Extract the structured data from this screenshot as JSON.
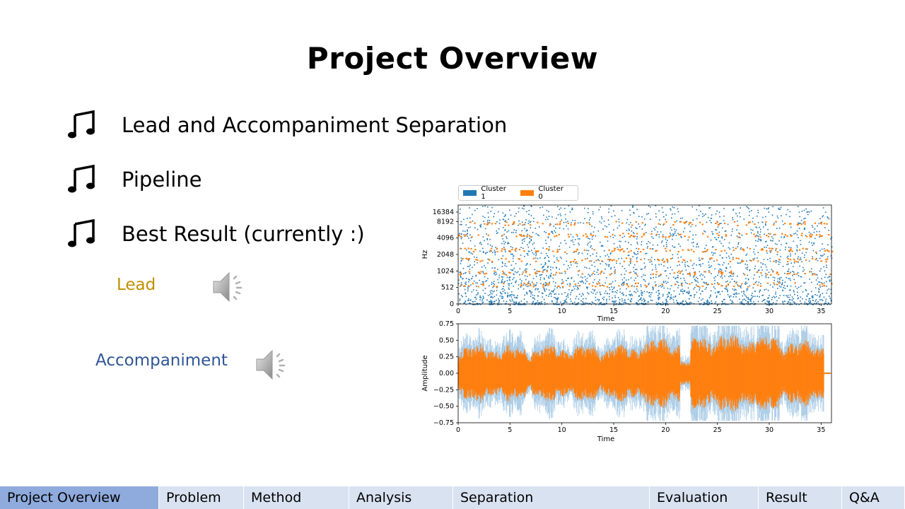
{
  "slide": {
    "title": "Project Overview",
    "bullets": [
      {
        "text": "Lead and Accompaniment Separation",
        "icon": "music-note-icon"
      },
      {
        "text": "Pipeline",
        "icon": "music-note-icon"
      },
      {
        "text": "Best Result (currently :)",
        "icon": "music-note-icon"
      }
    ],
    "audio": [
      {
        "label": "Lead",
        "color": "#c09000",
        "icon": "speaker-icon"
      },
      {
        "label": "Accompaniment",
        "color": "#2f5597",
        "icon": "speaker-icon"
      }
    ]
  },
  "colors": {
    "cluster1": "#1f77b4",
    "cluster0": "#ff7f0e",
    "nav_active": "#8faadc",
    "nav_bg": "#d9e2f1"
  },
  "chart_data": [
    {
      "type": "scatter",
      "title": "",
      "xlabel": "Time",
      "ylabel": "Hz",
      "x_ticks": [
        "0",
        "5",
        "10",
        "15",
        "20",
        "25",
        "30",
        "35"
      ],
      "y_ticks": [
        "0",
        "512",
        "1024",
        "2048",
        "4096",
        "8192",
        "16384"
      ],
      "xlim": [
        0,
        36
      ],
      "yscale": "log2",
      "legend": {
        "placement": "top-left",
        "entries": [
          "Cluster 1",
          "Cluster 0"
        ]
      },
      "series": [
        {
          "name": "Cluster 1",
          "color": "#1f77b4"
        },
        {
          "name": "Cluster 0",
          "color": "#ff7f0e"
        }
      ]
    },
    {
      "type": "line",
      "title": "",
      "xlabel": "Time",
      "ylabel": "Amplitude",
      "x_ticks": [
        "0",
        "5",
        "10",
        "15",
        "20",
        "25",
        "30",
        "35"
      ],
      "y_ticks": [
        "0.75",
        "0.50",
        "0.25",
        "0.00",
        "−0.25",
        "−0.50",
        "−0.75"
      ],
      "xlim": [
        0,
        36
      ],
      "ylim": [
        -0.75,
        0.75
      ]
    }
  ],
  "nav": {
    "tabs": [
      {
        "label": "Project Overview",
        "active": true
      },
      {
        "label": "Problem",
        "active": false
      },
      {
        "label": "Method",
        "active": false
      },
      {
        "label": "Analysis",
        "active": false
      },
      {
        "label": "Separation",
        "active": false
      },
      {
        "label": "Evaluation",
        "active": false
      },
      {
        "label": "Result",
        "active": false
      },
      {
        "label": "Q&A",
        "active": false
      }
    ]
  }
}
